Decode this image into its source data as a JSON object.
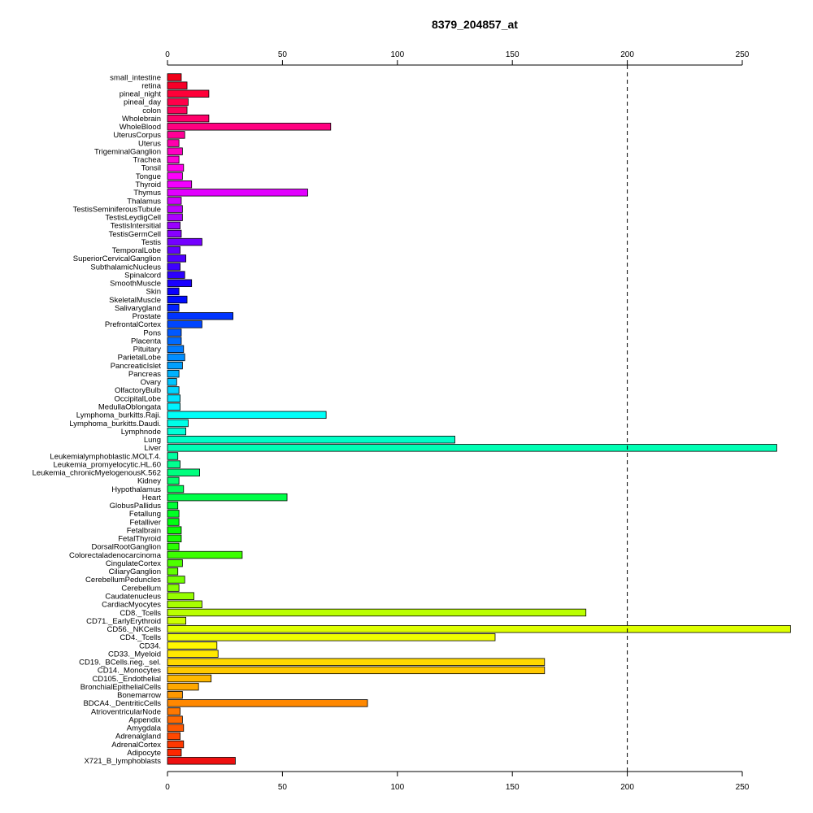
{
  "chart_data": {
    "type": "bar",
    "orientation": "horizontal",
    "title": "8379_204857_at",
    "xlabel": "",
    "ylabel": "",
    "xlim": [
      0,
      270
    ],
    "xticks": [
      0,
      50,
      100,
      150,
      200,
      250
    ],
    "reference_line": 200,
    "grid": false,
    "categories": [
      "small_intestine",
      "retina",
      "pineal_night",
      "pineal_day",
      "colon",
      "Wholebrain",
      "WholeBlood",
      "UterusCorpus",
      "Uterus",
      "TrigeminalGanglion",
      "Trachea",
      "Tonsil",
      "Tongue",
      "Thyroid",
      "Thymus",
      "Thalamus",
      "TestisSeminiferousTubule",
      "TestisLeydigCell",
      "TestisIntersitial",
      "TestisGermCell",
      "Testis",
      "TemporalLobe",
      "SuperiorCervicalGanglion",
      "SubthalamicNucleus",
      "Spinalcord",
      "SmoothMuscle",
      "Skin",
      "SkeletalMuscle",
      "Salivarygland",
      "Prostate",
      "PrefrontalCortex",
      "Pons",
      "Placenta",
      "Pituitary",
      "ParietalLobe",
      "PancreaticIslet",
      "Pancreas",
      "Ovary",
      "OlfactoryBulb",
      "OccipitalLobe",
      "MedullaOblongata",
      "Lymphoma_burkitts.Raji.",
      "Lymphoma_burkitts.Daudi.",
      "Lymphnode",
      "Lung",
      "Liver",
      "Leukemialymphoblastic.MOLT.4.",
      "Leukemia_promyelocytic.HL.60",
      "Leukemia_chronicMyelogenousK.562",
      "Kidney",
      "Hypothalamus",
      "Heart",
      "GlobusPallidus",
      "Fetallung",
      "Fetalliver",
      "Fetalbrain",
      "FetalThyroid",
      "DorsalRootGanglion",
      "Colorectaladenocarcinoma",
      "CingulateCortex",
      "CiliaryGanglion",
      "CerebellumPeduncles",
      "Cerebellum",
      "Caudatenucleus",
      "CardiacMyocytes",
      "CD8._Tcells",
      "CD71._EarlyErythroid",
      "CD56._NKCells",
      "CD4._Tcells",
      "CD34.",
      "CD33._Myeloid",
      "CD19._BCells.neg._sel.",
      "CD14._Monocytes",
      "CD105._Endothelial",
      "BronchialEpithelialCells",
      "Bonemarrow",
      "BDCA4._DentriticCells",
      "AtrioventricularNode",
      "Appendix",
      "Amygdala",
      "Adrenalgland",
      "AdrenalCortex",
      "Adipocyte",
      "X721_B_lymphoblasts"
    ],
    "values": [
      6,
      8.5,
      18,
      9,
      8.5,
      18,
      71,
      7.5,
      5,
      6.5,
      5,
      7,
      6.5,
      10.5,
      61,
      6,
      6.5,
      6.5,
      5.5,
      6,
      15,
      5.5,
      8,
      5.5,
      7.5,
      10.5,
      5,
      8.5,
      5,
      28.5,
      15,
      6,
      6,
      7,
      7.5,
      6.5,
      5,
      4,
      5,
      5.5,
      5.5,
      69,
      9,
      8,
      125,
      265,
      4.5,
      5.5,
      14,
      5,
      7,
      52,
      4.5,
      5,
      5,
      6,
      6,
      5,
      32.5,
      6.5,
      4.5,
      7.5,
      5,
      11.5,
      15,
      182,
      8,
      271,
      142.5,
      21.5,
      22,
      164,
      164,
      19,
      13.5,
      6.5,
      87,
      5.5,
      6.5,
      7,
      5.5,
      7,
      6,
      29.5
    ],
    "bar_colors": [
      "#f00018",
      "#f70028",
      "#ff0038",
      "#ff004a",
      "#ff005a",
      "#ff006a",
      "#ff0080",
      "#ff0096",
      "#ff00ac",
      "#ff00c2",
      "#ff00d6",
      "#ff00ea",
      "#fd00fc",
      "#f200ff",
      "#e200ff",
      "#d000ff",
      "#be00ff",
      "#ac00ff",
      "#9a00ff",
      "#8800ff",
      "#7400ff",
      "#6200ff",
      "#5000ff",
      "#3e00ff",
      "#2c00ff",
      "#1a00ff",
      "#0a00ff",
      "#000cff",
      "#0020ff",
      "#0034ff",
      "#0046ff",
      "#0058ff",
      "#006aff",
      "#007cff",
      "#008eff",
      "#00a0ff",
      "#00b2ff",
      "#00c4ff",
      "#00d4ff",
      "#00e4ff",
      "#00f2ff",
      "#00fff8",
      "#00ffe8",
      "#00ffd8",
      "#00ffc6",
      "#00ffb4",
      "#00ffa2",
      "#00ff90",
      "#00ff7e",
      "#00ff6c",
      "#00ff5a",
      "#00ff48",
      "#00ff36",
      "#00ff24",
      "#00ff12",
      "#06ff00",
      "#18ff00",
      "#2aff00",
      "#3cff00",
      "#4eff00",
      "#60ff00",
      "#72ff00",
      "#84ff00",
      "#96ff00",
      "#a8ff00",
      "#baff00",
      "#ccff00",
      "#deff00",
      "#f0ff00",
      "#fff800",
      "#ffe800",
      "#ffd800",
      "#ffc800",
      "#ffb800",
      "#ffa800",
      "#ff9800",
      "#ff8800",
      "#ff7800",
      "#ff6800",
      "#ff5800",
      "#ff4800",
      "#ff3800",
      "#ff2800",
      "#ee1010"
    ],
    "bar_stroke": "#000000",
    "reference_line_color": "#000000"
  }
}
